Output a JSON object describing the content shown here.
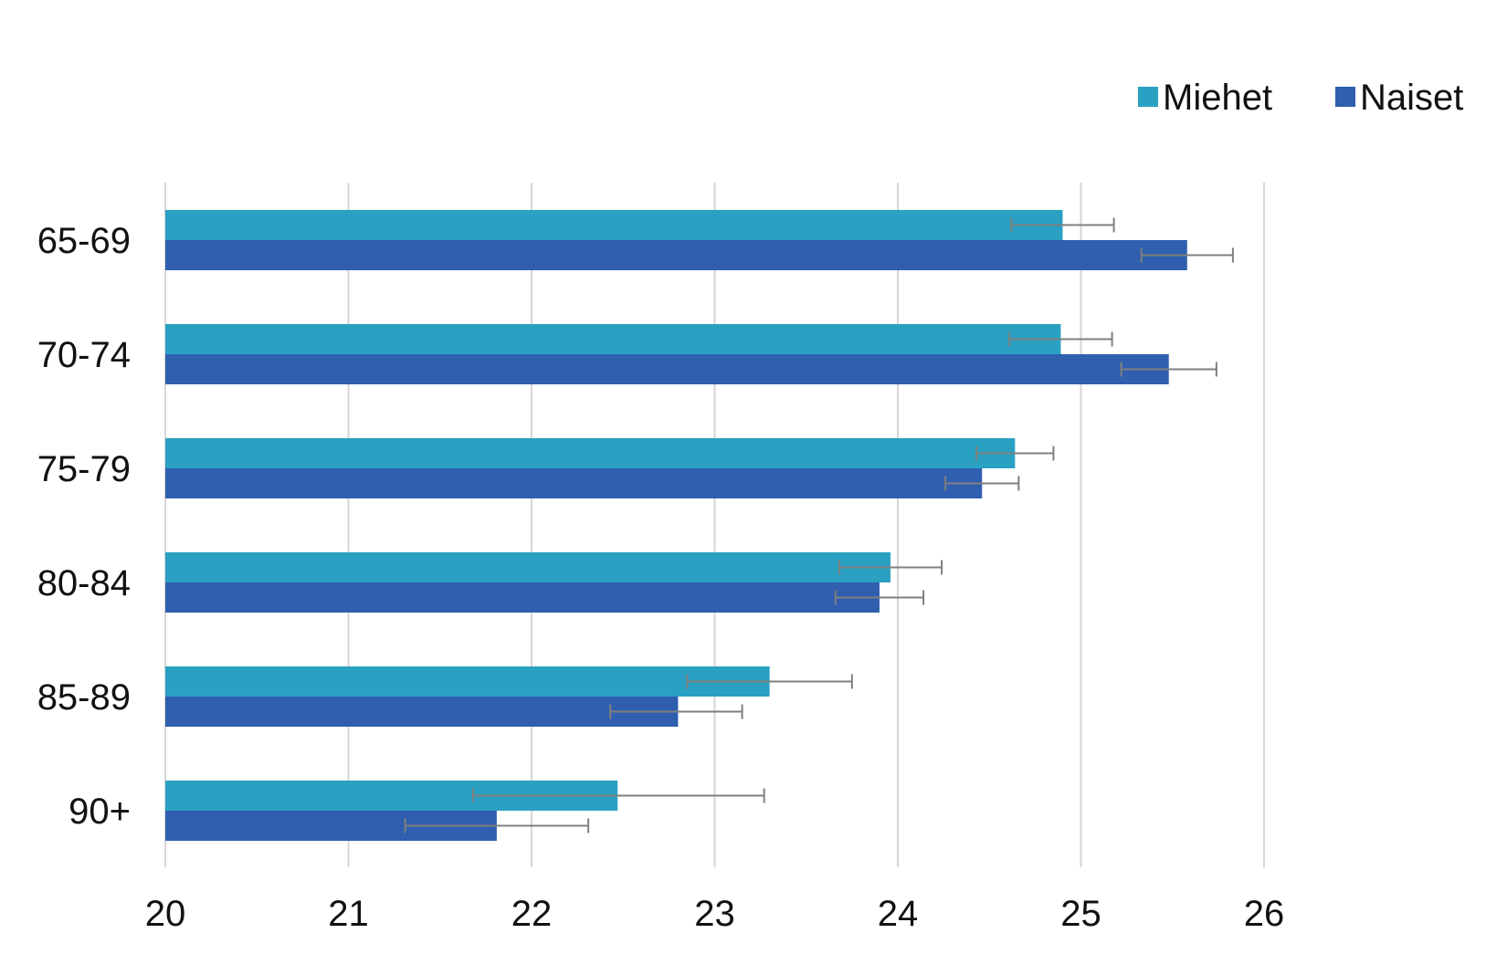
{
  "chart_data": {
    "type": "bar",
    "orientation": "horizontal",
    "categories": [
      "65-69",
      "70-74",
      "75-79",
      "80-84",
      "85-89",
      "90+"
    ],
    "series": [
      {
        "name": "Miehet",
        "color": "#2aa1c2",
        "values": [
          24.9,
          24.89,
          24.64,
          23.96,
          23.3,
          22.47
        ],
        "error_low": [
          24.62,
          24.61,
          24.43,
          23.68,
          22.85,
          21.68
        ],
        "error_high": [
          25.18,
          25.17,
          24.85,
          24.24,
          23.75,
          23.27
        ]
      },
      {
        "name": "Naiset",
        "color": "#2f5fae",
        "values": [
          25.58,
          25.48,
          24.46,
          23.9,
          22.8,
          21.81
        ],
        "error_low": [
          25.33,
          25.22,
          24.26,
          23.66,
          22.43,
          21.31
        ],
        "error_high": [
          25.83,
          25.74,
          24.66,
          24.14,
          23.15,
          22.31
        ]
      }
    ],
    "xlim": [
      20,
      26
    ],
    "xticks": [
      20,
      21,
      22,
      23,
      24,
      25,
      26
    ],
    "xtick_labels": [
      "20",
      "21",
      "22",
      "23",
      "24",
      "25",
      "26"
    ],
    "title": "",
    "xlabel": "",
    "ylabel": "",
    "grid": true,
    "legend_position": "top-right",
    "error_bar_color": "#7f7f7f",
    "grid_color": "#d6d6d6"
  }
}
